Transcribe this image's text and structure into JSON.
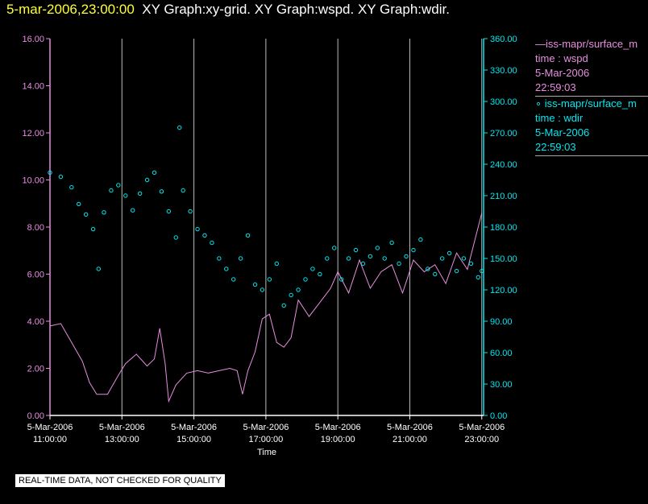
{
  "header": {
    "timestamp": "5-mar-2006,23:00:00",
    "graphs_text": "XY Graph:xy-grid.  XY Graph:wspd.  XY Graph:wdir."
  },
  "legend": {
    "series1": {
      "line1": "—iss-mapr/surface_m",
      "line2": "time : wspd",
      "line3": "5-Mar-2006",
      "line4": "22:59:03"
    },
    "series2": {
      "line1": "∘ iss-mapr/surface_m",
      "line2": "time : wdir",
      "line3": "5-Mar-2006",
      "line4": "22:59:03"
    }
  },
  "notice": "REAL-TIME DATA, NOT CHECKED FOR QUALITY",
  "chart_data": {
    "type": "line+scatter",
    "title": "XY Graph:wspd / XY Graph:wdir",
    "xlabel": "Time",
    "x_ticks": [
      {
        "hour": 11,
        "date": "5-Mar-2006",
        "time": "11:00:00"
      },
      {
        "hour": 13,
        "date": "5-Mar-2006",
        "time": "13:00:00"
      },
      {
        "hour": 15,
        "date": "5-Mar-2006",
        "time": "15:00:00"
      },
      {
        "hour": 17,
        "date": "5-Mar-2006",
        "time": "17:00:00"
      },
      {
        "hour": 19,
        "date": "5-Mar-2006",
        "time": "19:00:00"
      },
      {
        "hour": 21,
        "date": "5-Mar-2006",
        "time": "21:00:00"
      },
      {
        "hour": 23,
        "date": "5-Mar-2006",
        "time": "23:00:00"
      }
    ],
    "xlim": [
      11,
      23.05
    ],
    "y_left": {
      "name": "wspd",
      "ylim": [
        0,
        16
      ],
      "ticks": [
        "0.00",
        "2.00",
        "4.00",
        "6.00",
        "8.00",
        "10.00",
        "12.00",
        "14.00",
        "16.00"
      ],
      "color": "#e88ee0"
    },
    "y_right": {
      "name": "wdir",
      "ylim": [
        0,
        360
      ],
      "ticks": [
        "0.00",
        "30.00",
        "60.00",
        "90.00",
        "120.00",
        "150.00",
        "180.00",
        "210.00",
        "240.00",
        "270.00",
        "300.00",
        "330.00",
        "360.00"
      ],
      "color": "#00e8f0"
    },
    "series": [
      {
        "name": "wspd",
        "style": "line",
        "color": "#e88ee0",
        "points": [
          [
            11.0,
            3.8
          ],
          [
            11.3,
            3.9
          ],
          [
            11.6,
            3.1
          ],
          [
            11.9,
            2.3
          ],
          [
            12.1,
            1.4
          ],
          [
            12.3,
            0.9
          ],
          [
            12.6,
            0.9
          ],
          [
            12.9,
            1.7
          ],
          [
            13.1,
            2.2
          ],
          [
            13.4,
            2.6
          ],
          [
            13.7,
            2.1
          ],
          [
            13.9,
            2.4
          ],
          [
            14.05,
            3.7
          ],
          [
            14.2,
            2.2
          ],
          [
            14.3,
            0.6
          ],
          [
            14.5,
            1.3
          ],
          [
            14.8,
            1.8
          ],
          [
            15.1,
            1.9
          ],
          [
            15.4,
            1.8
          ],
          [
            15.7,
            1.9
          ],
          [
            16.0,
            2.0
          ],
          [
            16.2,
            1.9
          ],
          [
            16.35,
            0.9
          ],
          [
            16.5,
            1.9
          ],
          [
            16.7,
            2.7
          ],
          [
            16.9,
            4.1
          ],
          [
            17.1,
            4.3
          ],
          [
            17.3,
            3.1
          ],
          [
            17.5,
            2.9
          ],
          [
            17.7,
            3.3
          ],
          [
            17.9,
            4.9
          ],
          [
            18.2,
            4.2
          ],
          [
            18.5,
            4.8
          ],
          [
            18.8,
            5.4
          ],
          [
            19.0,
            6.1
          ],
          [
            19.3,
            5.2
          ],
          [
            19.6,
            6.6
          ],
          [
            19.9,
            5.4
          ],
          [
            20.2,
            6.1
          ],
          [
            20.5,
            6.4
          ],
          [
            20.8,
            5.2
          ],
          [
            21.1,
            6.6
          ],
          [
            21.4,
            6.1
          ],
          [
            21.7,
            6.4
          ],
          [
            22.0,
            5.6
          ],
          [
            22.3,
            6.9
          ],
          [
            22.6,
            6.2
          ],
          [
            22.9,
            8.0
          ],
          [
            23.0,
            8.6
          ]
        ]
      },
      {
        "name": "wdir",
        "style": "scatter",
        "color": "#00e8f0",
        "points": [
          [
            11.0,
            232
          ],
          [
            11.3,
            228
          ],
          [
            11.6,
            218
          ],
          [
            11.8,
            202
          ],
          [
            12.0,
            192
          ],
          [
            12.2,
            178
          ],
          [
            12.35,
            140
          ],
          [
            12.5,
            194
          ],
          [
            12.7,
            215
          ],
          [
            12.9,
            220
          ],
          [
            13.1,
            210
          ],
          [
            13.3,
            196
          ],
          [
            13.5,
            212
          ],
          [
            13.7,
            225
          ],
          [
            13.9,
            232
          ],
          [
            14.1,
            214
          ],
          [
            14.3,
            195
          ],
          [
            14.5,
            170
          ],
          [
            14.6,
            275
          ],
          [
            14.7,
            215
          ],
          [
            14.9,
            195
          ],
          [
            15.1,
            178
          ],
          [
            15.3,
            172
          ],
          [
            15.5,
            165
          ],
          [
            15.7,
            150
          ],
          [
            15.9,
            140
          ],
          [
            16.1,
            130
          ],
          [
            16.3,
            150
          ],
          [
            16.5,
            172
          ],
          [
            16.7,
            125
          ],
          [
            16.9,
            120
          ],
          [
            17.1,
            130
          ],
          [
            17.3,
            145
          ],
          [
            17.5,
            105
          ],
          [
            17.7,
            115
          ],
          [
            17.9,
            120
          ],
          [
            18.1,
            130
          ],
          [
            18.3,
            140
          ],
          [
            18.5,
            135
          ],
          [
            18.7,
            150
          ],
          [
            18.9,
            160
          ],
          [
            19.1,
            130
          ],
          [
            19.3,
            150
          ],
          [
            19.5,
            158
          ],
          [
            19.7,
            145
          ],
          [
            19.9,
            152
          ],
          [
            20.1,
            160
          ],
          [
            20.3,
            150
          ],
          [
            20.5,
            165
          ],
          [
            20.7,
            145
          ],
          [
            20.9,
            152
          ],
          [
            21.1,
            158
          ],
          [
            21.3,
            168
          ],
          [
            21.5,
            140
          ],
          [
            21.7,
            135
          ],
          [
            21.9,
            150
          ],
          [
            22.1,
            155
          ],
          [
            22.3,
            138
          ],
          [
            22.5,
            150
          ],
          [
            22.7,
            145
          ],
          [
            22.9,
            132
          ],
          [
            23.0,
            138
          ]
        ]
      }
    ]
  }
}
